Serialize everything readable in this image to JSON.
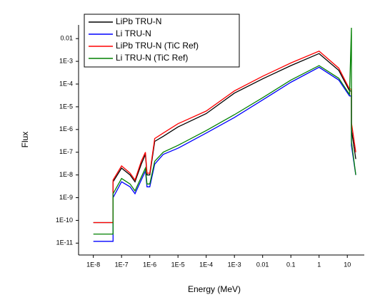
{
  "chart_data": {
    "type": "line",
    "xlabel": "Energy (MeV)",
    "ylabel": "Flux",
    "xscale": "log",
    "yscale": "log",
    "xlim": [
      3e-09,
      40
    ],
    "ylim": [
      3e-12,
      0.04
    ],
    "xticks": [
      {
        "value": 1e-08,
        "label": "1E-8"
      },
      {
        "value": 1e-07,
        "label": "1E-7"
      },
      {
        "value": 1e-06,
        "label": "1E-6"
      },
      {
        "value": 1e-05,
        "label": "1E-5"
      },
      {
        "value": 0.0001,
        "label": "1E-4"
      },
      {
        "value": 0.001,
        "label": "1E-3"
      },
      0.01,
      0.1,
      1,
      10
    ],
    "yticks": [
      {
        "value": 1e-11,
        "label": "1E-11"
      },
      {
        "value": 1e-10,
        "label": "1E-10"
      },
      {
        "value": 1e-09,
        "label": "1E-9"
      },
      {
        "value": 1e-08,
        "label": "1E-8"
      },
      {
        "value": 1e-07,
        "label": "1E-7"
      },
      {
        "value": 1e-06,
        "label": "1E-6"
      },
      {
        "value": 1e-05,
        "label": "1E-5"
      },
      {
        "value": 0.0001,
        "label": "1E-4"
      },
      {
        "value": 0.001,
        "label": "1E-3"
      },
      0.01
    ],
    "legend": "upper left",
    "x": [
      1e-08,
      5e-08,
      5e-08,
      1e-07,
      2e-07,
      3e-07,
      5e-07,
      7e-07,
      8e-07,
      1e-06,
      1.5e-06,
      3e-06,
      1e-05,
      0.0001,
      0.001,
      0.01,
      0.1,
      1,
      5,
      12,
      14,
      14,
      20
    ],
    "series": [
      {
        "name": "LiPb TRU-N",
        "color": "#000000",
        "values": [
          8e-11,
          8e-11,
          5e-09,
          2e-08,
          1e-08,
          5e-09,
          3e-08,
          8e-08,
          1e-08,
          1e-08,
          3e-07,
          5e-07,
          1.3e-06,
          5e-06,
          4e-05,
          0.00017,
          0.00065,
          0.0022,
          0.0004,
          5e-05,
          5e-05,
          1e-06,
          5e-08
        ]
      },
      {
        "name": "Li TRU-N",
        "color": "#0000ff",
        "values": [
          1.2e-11,
          1.2e-11,
          1e-09,
          5e-09,
          3e-09,
          1.5e-09,
          6e-09,
          1.5e-08,
          3e-09,
          3e-09,
          3e-08,
          8e-08,
          1.5e-07,
          7e-07,
          3.4e-06,
          2e-05,
          0.00012,
          0.00055,
          0.00015,
          3e-05,
          3e-05,
          2e-07,
          1e-08
        ]
      },
      {
        "name": "LiPb TRU-N (TiC Ref)",
        "color": "#ff0000",
        "values": [
          8e-11,
          8e-11,
          6e-09,
          2.5e-08,
          1.2e-08,
          6e-09,
          4e-08,
          1e-07,
          1.2e-08,
          1.2e-08,
          4e-07,
          7e-07,
          1.8e-06,
          6.5e-06,
          5e-05,
          0.00022,
          0.00085,
          0.0028,
          0.0005,
          6e-05,
          6e-05,
          2e-06,
          1e-07
        ]
      },
      {
        "name": "Li TRU-N (TiC Ref)",
        "color": "#008000",
        "values": [
          2.5e-11,
          2.5e-11,
          1.5e-09,
          7e-09,
          4e-09,
          2e-09,
          8e-09,
          2e-08,
          4e-09,
          4e-09,
          4e-08,
          1e-07,
          2e-07,
          9e-07,
          4.5e-06,
          2.5e-05,
          0.00015,
          0.00065,
          0.00018,
          3.5e-05,
          0.03,
          3e-07,
          1e-08
        ]
      }
    ]
  }
}
